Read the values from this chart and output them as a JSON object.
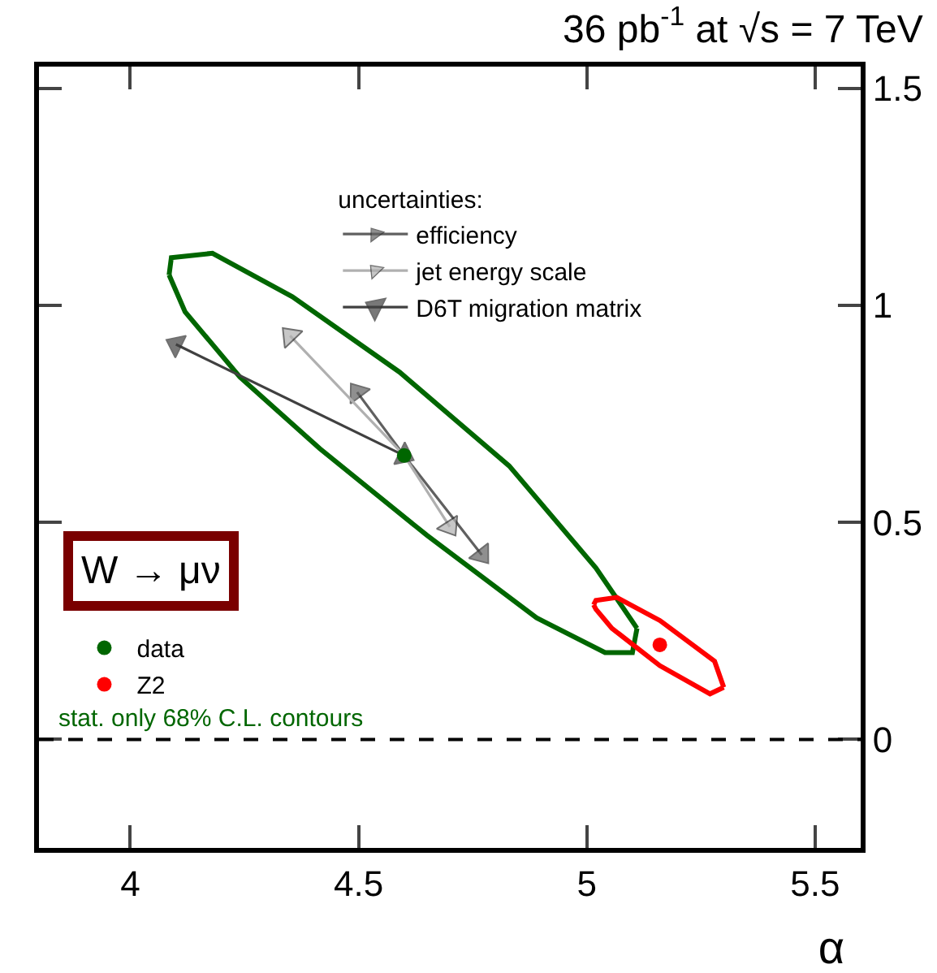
{
  "chart_data": {
    "type": "line",
    "title": "36 pb$^{-1}$ at √s = 7 TeV",
    "xlabel": "α",
    "legend_title": "uncertainties:",
    "legend": "left",
    "grid": false,
    "xlim": [
      3.8,
      5.6
    ],
    "xticks": [
      4,
      4.5,
      5,
      5.5
    ],
    "ylim": [
      -0.25,
      1.55
    ],
    "yticks": [
      0,
      0.5,
      1,
      1.5
    ],
    "annotations": [
      "W → μν",
      "stat. only 68% C.L. contours"
    ],
    "ref_lines": [
      {
        "axis": "y",
        "value": 0,
        "color": "#000000",
        "line_style": "dashed"
      }
    ],
    "series": [
      {
        "color": "#006600",
        "x": [
          4.085,
          4.09,
          4.18,
          4.355,
          4.59,
          4.83,
          5.02,
          5.11
        ],
        "values": [
          1.07,
          1.11,
          1.12,
          1.02,
          0.846,
          0.63,
          0.395,
          0.256
        ]
      },
      {
        "color": "#006600",
        "x": [
          4.085,
          4.12,
          4.24,
          4.415,
          4.65,
          4.89,
          5.04,
          5.1,
          5.11
        ],
        "values": [
          1.07,
          0.985,
          0.835,
          0.67,
          0.47,
          0.28,
          0.2,
          0.2,
          0.256
        ]
      },
      {
        "color": "#ff0000",
        "x": [
          5.015,
          5.02,
          5.066,
          5.16,
          5.28,
          5.3
        ],
        "values": [
          0.31,
          0.32,
          0.327,
          0.274,
          0.18,
          0.12
        ]
      },
      {
        "color": "#ff0000",
        "x": [
          5.015,
          5.02,
          5.055,
          5.16,
          5.27,
          5.3
        ],
        "values": [
          0.31,
          0.3,
          0.256,
          0.17,
          0.105,
          0.12
        ]
      },
      {
        "name": "efficiency",
        "color": "#606060",
        "marker": "triangle",
        "x": [
          4.497,
          4.6,
          4.77
        ],
        "values": [
          0.8,
          0.654,
          0.425
        ]
      },
      {
        "name": "jet energy scale",
        "color": "#b0b0b0",
        "marker": "triangle",
        "x": [
          4.35,
          4.6,
          4.7
        ],
        "values": [
          0.93,
          0.654,
          0.49
        ]
      },
      {
        "name": "D6T migration matrix",
        "color": "#404040",
        "marker": "triangle",
        "x": [
          4.1,
          4.6
        ],
        "values": [
          0.91,
          0.654
        ]
      },
      {
        "type": "scatter",
        "name": "data",
        "color": "#006600",
        "marker": "circle",
        "x": [
          4.6
        ],
        "values": [
          0.654
        ]
      },
      {
        "type": "scatter",
        "name": "Z2",
        "color": "#ff0000",
        "marker": "circle",
        "x": [
          5.16
        ],
        "values": [
          0.218
        ]
      }
    ]
  }
}
